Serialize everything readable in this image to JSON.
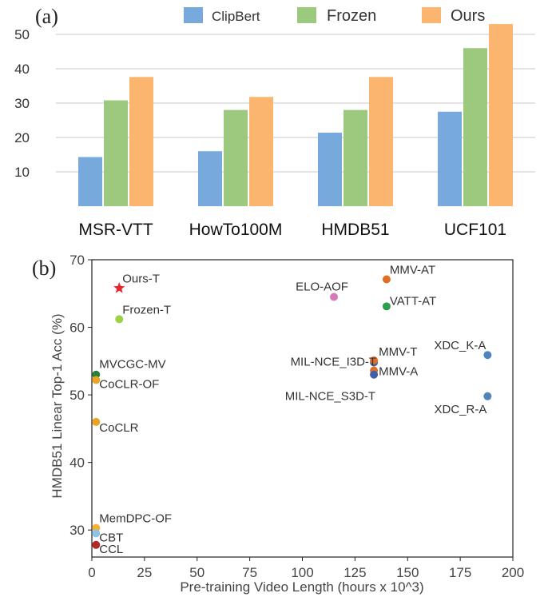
{
  "chart_data": [
    {
      "type": "bar",
      "panel_label": "(a)",
      "categories": [
        "MSR-VTT",
        "HowTo100M",
        "HMDB51",
        "UCF101"
      ],
      "series": [
        {
          "name": "ClipBert",
          "color": "#77a9dc",
          "values": [
            14.3,
            16.0,
            21.4,
            27.5
          ]
        },
        {
          "name": "Frozen",
          "color": "#9cc97d",
          "values": [
            30.8,
            28.0,
            28.0,
            46.0
          ]
        },
        {
          "name": "Ours",
          "color": "#fbb56e",
          "values": [
            37.6,
            31.8,
            37.6,
            53.0
          ]
        }
      ],
      "yticks": [
        10,
        20,
        30,
        40,
        50
      ],
      "ylim": [
        0,
        55
      ],
      "grid": true,
      "legend": "top"
    },
    {
      "type": "scatter",
      "panel_label": "(b)",
      "xlabel": "Pre-training Video Length (hours x 10^3)",
      "ylabel": "HMDB51 Linear Top-1 Acc (%)",
      "xlim": [
        0,
        200
      ],
      "ylim": [
        26,
        70
      ],
      "xticks": [
        0,
        25,
        50,
        75,
        100,
        125,
        150,
        175,
        200
      ],
      "yticks": [
        30,
        40,
        50,
        60,
        70
      ],
      "grid": false,
      "points": [
        {
          "label": "Ours-T",
          "x": 13,
          "y": 65.8,
          "color": "#e8262c",
          "marker": "star"
        },
        {
          "label": "Frozen-T",
          "x": 13,
          "y": 61.2,
          "color": "#9cd045",
          "marker": "circle"
        },
        {
          "label": "MVCGC-MV",
          "x": 2,
          "y": 53.0,
          "color": "#2a7d3a",
          "marker": "circle"
        },
        {
          "label": "CoCLR-OF",
          "x": 2,
          "y": 52.2,
          "color": "#e8a626",
          "marker": "circle"
        },
        {
          "label": "CoCLR",
          "x": 2,
          "y": 46.0,
          "color": "#e8a626",
          "marker": "circle"
        },
        {
          "label": "MemDPC-OF",
          "x": 2,
          "y": 30.3,
          "color": "#f5b134",
          "marker": "circle"
        },
        {
          "label": "CBT",
          "x": 2,
          "y": 29.5,
          "color": "#8ec3e6",
          "marker": "circle"
        },
        {
          "label": "CCL",
          "x": 2,
          "y": 27.8,
          "color": "#b02a2a",
          "marker": "circle"
        },
        {
          "label": "ELO-AOF",
          "x": 115,
          "y": 64.5,
          "color": "#d57ab8",
          "marker": "circle"
        },
        {
          "label": "MMV-AT",
          "x": 140,
          "y": 67.1,
          "color": "#e36d24",
          "marker": "circle"
        },
        {
          "label": "VATT-AT",
          "x": 140,
          "y": 63.1,
          "color": "#2e9e4a",
          "marker": "circle"
        },
        {
          "label": "MIL-NCE_I3D-T",
          "x": 134,
          "y": 54.8,
          "color": "#3f5fa8",
          "marker": "circle"
        },
        {
          "label": "MMV-T",
          "x": 134,
          "y": 55.1,
          "color": "#e36d24",
          "marker": "circle"
        },
        {
          "label": "MMV-A",
          "x": 134,
          "y": 53.6,
          "color": "#e36d24",
          "marker": "circle"
        },
        {
          "label": "MIL-NCE_S3D-T",
          "x": 134,
          "y": 53.0,
          "color": "#3f5fa8",
          "marker": "circle"
        },
        {
          "label": "XDC_K-A",
          "x": 188,
          "y": 55.9,
          "color": "#4f84bd",
          "marker": "circle"
        },
        {
          "label": "XDC_R-A",
          "x": 188,
          "y": 49.8,
          "color": "#4f84bd",
          "marker": "circle"
        }
      ]
    }
  ]
}
